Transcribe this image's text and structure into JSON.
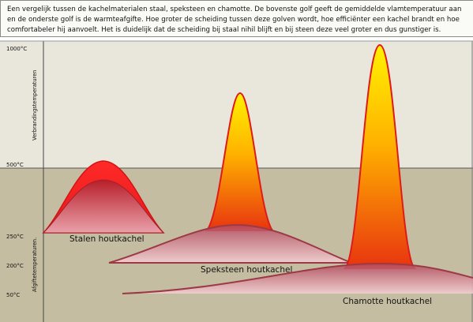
{
  "description": "Een vergelijk tussen de kachelmaterialen staal, speksteen en chamotte. De bovenste golf geeft de gemiddelde vlamtemperatuur aan en de onderste golf is de warmteafgifte. Hoe groter de scheiding tussen deze golven wordt, hoe efficiënter een kachel brandt en hoe comfortabeler hij aanvoelt. Het is duidelijk dat de scheiding bij staal nihil blijft en bij steen deze veel groter en dus gunstiger is.",
  "axis": {
    "upper_label": "Verbrandingstemperaturen",
    "lower_label": "Afgiftetemperaturen.",
    "ticks": [
      {
        "label": "1000°C",
        "temp": 1000
      },
      {
        "label": "500°C",
        "temp": 500
      },
      {
        "label": "250°C",
        "temp": 250
      },
      {
        "label": "200°C",
        "temp": 200
      },
      {
        "label": "50°C",
        "temp": 50
      }
    ]
  },
  "stoves": [
    {
      "name": "Stalen houtkachel"
    },
    {
      "name": "Speksteen houtkachel"
    },
    {
      "name": "Chamotte houtkachel"
    }
  ],
  "colors": {
    "upper_zone": "#e9e7dc",
    "lower_zone": "#c5bda1",
    "flame_outline": "#e01a1a",
    "flame_top": "#fff200",
    "flame_bottom": "#e8340f",
    "heat_outline": "#9b3a44",
    "heat_fill": "#e7a7b1"
  }
}
